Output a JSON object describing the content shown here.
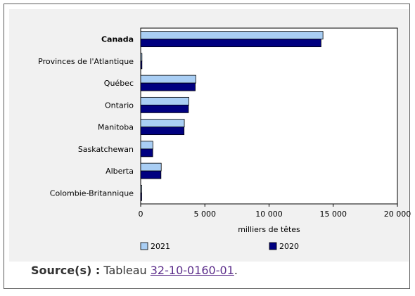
{
  "chart_data": {
    "type": "bar",
    "orientation": "horizontal",
    "categories": [
      "Canada",
      "Provinces de l'Atlantique",
      "Québec",
      "Ontario",
      "Manitoba",
      "Saskatchewan",
      "Alberta",
      "Colombie-Britannique"
    ],
    "bold_categories": [
      "Canada"
    ],
    "series": [
      {
        "name": "2021",
        "color": "#a9cef4",
        "values": [
          14200,
          100,
          4300,
          3750,
          3400,
          950,
          1600,
          80
        ]
      },
      {
        "name": "2020",
        "color": "#000080",
        "values": [
          14050,
          100,
          4250,
          3720,
          3380,
          940,
          1580,
          80
        ]
      }
    ],
    "xlabel": "milliers de têtes",
    "xlim": [
      0,
      20000
    ],
    "xticks": [
      0,
      5000,
      10000,
      15000,
      20000
    ],
    "xtick_labels": [
      "0",
      "5 000",
      "10 000",
      "15 000",
      "20 000"
    ],
    "legend_position": "bottom",
    "grid": false
  },
  "source": {
    "label": "Source(s) :",
    "text": "Tableau",
    "link": "32-10-0160-01",
    "suffix": "."
  }
}
